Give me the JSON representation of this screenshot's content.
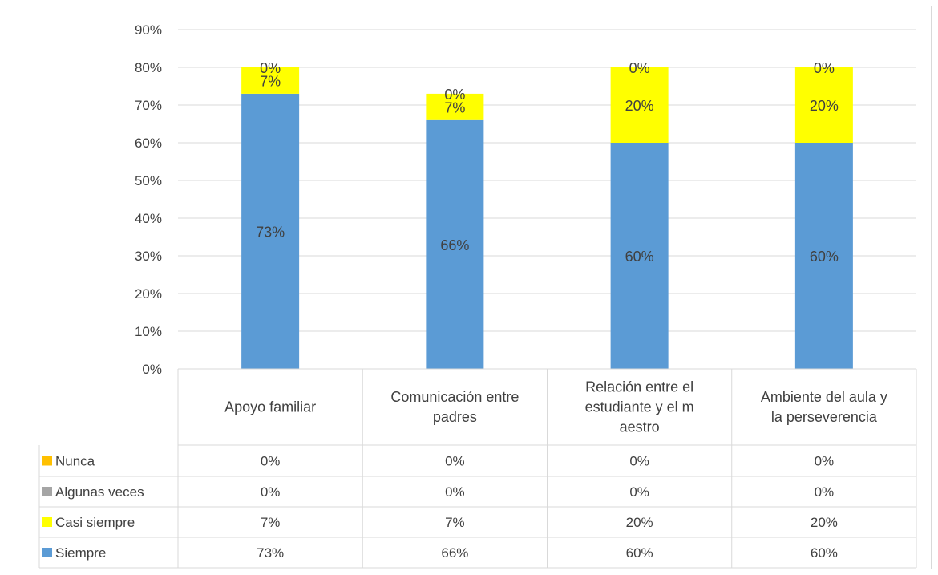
{
  "chart_data": {
    "type": "bar",
    "stacked": true,
    "title": "",
    "xlabel": "",
    "ylabel": "",
    "ylim": [
      0,
      90
    ],
    "y_tick_step": 10,
    "y_tick_suffix": "%",
    "grid": true,
    "legend_placement": "data-table-left",
    "categories": [
      [
        "Apoyo familiar"
      ],
      [
        "Comunicación entre",
        "padres"
      ],
      [
        "Relación entre el",
        "estudiante y el m",
        "aestro"
      ],
      [
        "Ambiente del aula y",
        "la perseverencia"
      ]
    ],
    "series": [
      {
        "name": "Siempre",
        "color": "#5b9bd5",
        "values": [
          73,
          66,
          60,
          60
        ]
      },
      {
        "name": "Casi siempre",
        "color": "#ffff00",
        "values": [
          7,
          7,
          20,
          20
        ]
      },
      {
        "name": "Algunas veces",
        "color": "#a5a5a5",
        "values": [
          0,
          0,
          0,
          0
        ]
      },
      {
        "name": "Nunca",
        "color": "#ffc000",
        "values": [
          0,
          0,
          0,
          0
        ]
      }
    ],
    "table_row_order": [
      "Nunca",
      "Algunas veces",
      "Casi siempre",
      "Siempre"
    ],
    "value_suffix": "%"
  },
  "colors": {
    "gridline": "#d9d9d9",
    "text": "#404040"
  }
}
